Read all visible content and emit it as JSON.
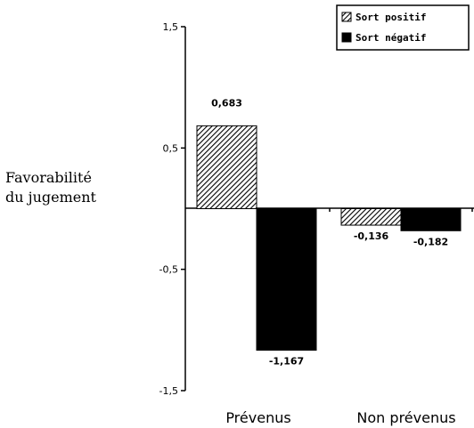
{
  "chart_data": {
    "type": "bar",
    "categories": [
      "Prévenus",
      "Non prévenus"
    ],
    "series": [
      {
        "name": "Sort positif",
        "values": [
          0.683,
          -0.136
        ],
        "labels": [
          "0,683",
          "-0,136"
        ],
        "pattern": "hatch"
      },
      {
        "name": "Sort négatif",
        "values": [
          -1.167,
          -0.182
        ],
        "labels": [
          "-1,167",
          "-0,182"
        ],
        "color": "#000000"
      }
    ],
    "ylabel_lines": [
      "Favorabilité",
      "du jugement"
    ],
    "ylim": [
      -1.5,
      1.5
    ],
    "yticks": [
      1.5,
      0.5,
      -0.5,
      -1.5
    ],
    "ytick_labels": [
      "1,5",
      "0,5",
      "-0,5",
      "-1,5"
    ],
    "legend": "top-right",
    "grid": false
  }
}
